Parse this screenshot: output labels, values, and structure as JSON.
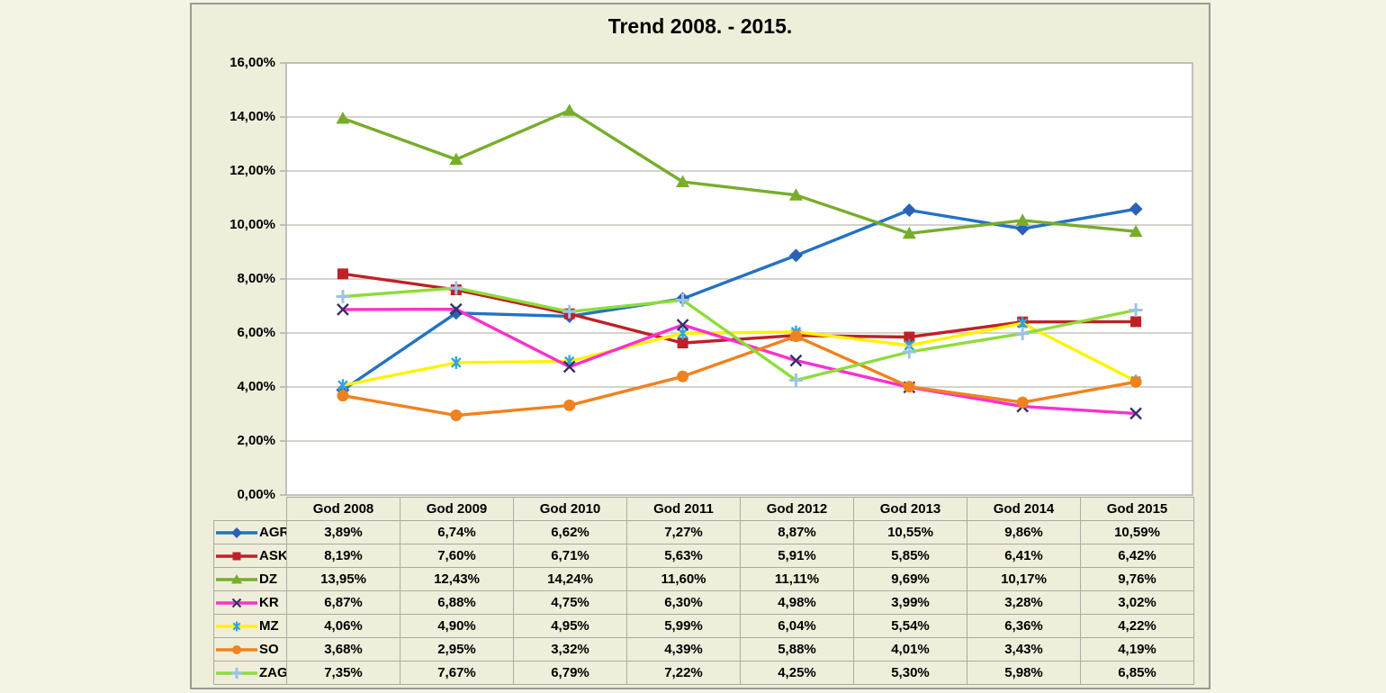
{
  "theme": {
    "outer_background": "#F5F3E4",
    "panel_background": "#EFEEDB",
    "panel_border": "#9A9A92",
    "plot_background": "#FFFFFF",
    "gridline_color": "#C6C5BD",
    "plot_border_color": "#B5B4AB",
    "table_border_color": "#ACAAA2",
    "text_color": "#000000"
  },
  "chart_data": {
    "type": "line",
    "title": "Trend 2008. - 2015.",
    "categories": [
      "God 2008",
      "God 2009",
      "God 2010",
      "God 2011",
      "God 2012",
      "God 2013",
      "God 2014",
      "God 2015"
    ],
    "y_axis": {
      "min": 0,
      "max": 16,
      "step": 2
    },
    "ytick_labels": [
      "0,00%",
      "2,00%",
      "4,00%",
      "6,00%",
      "8,00%",
      "10,00%",
      "12,00%",
      "14,00%",
      "16,00%"
    ],
    "grid": "horizontal-major",
    "legend_position": "table-left",
    "number_format": {
      "decimals": 2,
      "decimal_separator": ",",
      "suffix": "%"
    },
    "series": [
      {
        "name": "AGR",
        "marker": "diamond",
        "color": "#2272C4",
        "marker_color": "#2A62B8",
        "z": 1,
        "values": [
          3.89,
          6.74,
          6.62,
          7.27,
          8.87,
          10.55,
          9.86,
          10.59
        ]
      },
      {
        "name": "ASK",
        "marker": "square",
        "color": "#BE2126",
        "marker_color": "#BE2126",
        "z": 2,
        "values": [
          8.19,
          7.6,
          6.71,
          5.63,
          5.91,
          5.85,
          6.41,
          6.42
        ]
      },
      {
        "name": "DZ",
        "marker": "triangle",
        "color": "#77AD2B",
        "marker_color": "#77AD2B",
        "z": 3,
        "values": [
          13.95,
          12.43,
          14.24,
          11.6,
          11.11,
          9.69,
          10.17,
          9.76
        ]
      },
      {
        "name": "KR",
        "marker": "x",
        "color": "#FB30CE",
        "marker_color": "#343169",
        "z": 5,
        "values": [
          6.87,
          6.88,
          4.75,
          6.3,
          4.98,
          3.99,
          3.28,
          3.02
        ]
      },
      {
        "name": "MZ",
        "marker": "asterisk",
        "color": "#FFF200",
        "marker_color": "#2FA6DD",
        "z": 4,
        "values": [
          4.06,
          4.9,
          4.95,
          5.99,
          6.04,
          5.54,
          6.36,
          4.22
        ]
      },
      {
        "name": "SO",
        "marker": "circle",
        "color": "#F0821E",
        "marker_color": "#F0821E",
        "z": 6,
        "values": [
          3.68,
          2.95,
          3.32,
          4.39,
          5.88,
          4.01,
          3.43,
          4.19
        ]
      },
      {
        "name": "ZAG",
        "marker": "plus",
        "color": "#8EDC3A",
        "marker_color": "#9DC3E6",
        "z": 7,
        "values": [
          7.35,
          7.67,
          6.79,
          7.22,
          4.25,
          5.3,
          5.98,
          6.85
        ]
      }
    ]
  }
}
